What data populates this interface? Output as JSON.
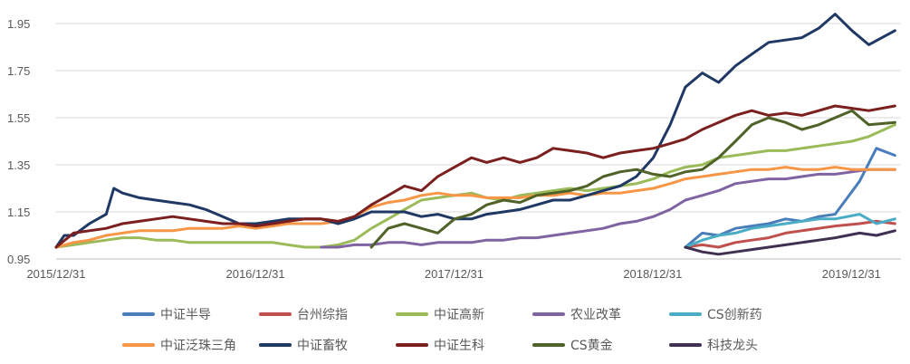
{
  "chart_data": {
    "type": "line",
    "title": "",
    "xlabel": "",
    "ylabel": "",
    "xlim": [
      "2015-12-31",
      "2020-03-31"
    ],
    "ylim": [
      0.95,
      1.95
    ],
    "yticks": [
      0.95,
      1.15,
      1.35,
      1.55,
      1.75,
      1.95
    ],
    "ytick_labels": [
      "0.95",
      "1.15",
      "1.35",
      "1.55",
      "1.75",
      "1.95"
    ],
    "xticks": [
      "2015-12-31",
      "2016-12-31",
      "2017-12-31",
      "2018-12-31",
      "2019-12-31"
    ],
    "xtick_labels": [
      "2015/12/31",
      "2016/12/31",
      "2017/12/31",
      "2018/12/31",
      "2019/12/31"
    ],
    "grid": "horizontal",
    "legend_position": "bottom",
    "series": [
      {
        "name": "中证半导",
        "color": "#4A7EBB",
        "x": [
          "2019-03-01",
          "2019-04-01",
          "2019-05-01",
          "2019-06-01",
          "2019-07-01",
          "2019-08-01",
          "2019-09-01",
          "2019-10-01",
          "2019-11-01",
          "2019-12-01",
          "2020-01-15",
          "2020-02-15",
          "2020-03-20"
        ],
        "y": [
          1.0,
          1.06,
          1.05,
          1.08,
          1.09,
          1.1,
          1.12,
          1.11,
          1.13,
          1.14,
          1.28,
          1.42,
          1.39
        ]
      },
      {
        "name": "台州综指",
        "color": "#C0504D",
        "x": [
          "2019-03-01",
          "2019-04-01",
          "2019-05-01",
          "2019-06-01",
          "2019-07-01",
          "2019-08-01",
          "2019-09-01",
          "2019-10-01",
          "2019-11-01",
          "2019-12-01",
          "2020-01-15",
          "2020-02-15",
          "2020-03-20"
        ],
        "y": [
          1.0,
          1.01,
          1.0,
          1.02,
          1.03,
          1.04,
          1.06,
          1.07,
          1.08,
          1.09,
          1.1,
          1.11,
          1.1
        ]
      },
      {
        "name": "中证高新",
        "color": "#9BBB59",
        "x": [
          "2015-12-31",
          "2016-02-01",
          "2016-03-01",
          "2016-04-01",
          "2016-05-01",
          "2016-06-01",
          "2016-07-01",
          "2016-08-01",
          "2016-09-01",
          "2016-10-01",
          "2016-11-01",
          "2016-12-01",
          "2017-01-01",
          "2017-02-01",
          "2017-03-01",
          "2017-04-01",
          "2017-05-01",
          "2017-06-01",
          "2017-07-01",
          "2017-08-01",
          "2017-09-01",
          "2017-10-01",
          "2017-11-01",
          "2017-12-01",
          "2018-01-01",
          "2018-02-01",
          "2018-03-01",
          "2018-04-01",
          "2018-05-01",
          "2018-06-01",
          "2018-07-01",
          "2018-08-01",
          "2018-09-01",
          "2018-10-01",
          "2018-11-01",
          "2018-12-01",
          "2019-01-01",
          "2019-02-01",
          "2019-03-01",
          "2019-04-01",
          "2019-05-01",
          "2019-06-01",
          "2019-07-01",
          "2019-08-01",
          "2019-09-01",
          "2019-10-01",
          "2019-11-01",
          "2019-12-01",
          "2020-01-01",
          "2020-02-01",
          "2020-03-20"
        ],
        "y": [
          1.0,
          1.01,
          1.02,
          1.03,
          1.04,
          1.04,
          1.03,
          1.03,
          1.02,
          1.02,
          1.02,
          1.02,
          1.02,
          1.02,
          1.01,
          1.0,
          1.0,
          1.01,
          1.03,
          1.08,
          1.12,
          1.16,
          1.2,
          1.21,
          1.22,
          1.23,
          1.21,
          1.2,
          1.22,
          1.23,
          1.24,
          1.25,
          1.24,
          1.25,
          1.26,
          1.27,
          1.29,
          1.32,
          1.34,
          1.35,
          1.38,
          1.39,
          1.4,
          1.41,
          1.41,
          1.42,
          1.43,
          1.44,
          1.45,
          1.47,
          1.52
        ]
      },
      {
        "name": "农业改革",
        "color": "#8064A2",
        "x": [
          "2017-05-01",
          "2017-06-01",
          "2017-07-01",
          "2017-08-01",
          "2017-09-01",
          "2017-10-01",
          "2017-11-01",
          "2017-12-01",
          "2018-01-01",
          "2018-02-01",
          "2018-03-01",
          "2018-04-01",
          "2018-05-01",
          "2018-06-01",
          "2018-07-01",
          "2018-08-01",
          "2018-09-01",
          "2018-10-01",
          "2018-11-01",
          "2018-12-01",
          "2019-01-01",
          "2019-02-01",
          "2019-03-01",
          "2019-04-01",
          "2019-05-01",
          "2019-06-01",
          "2019-07-01",
          "2019-08-01",
          "2019-09-01",
          "2019-10-01",
          "2019-11-01",
          "2019-12-01",
          "2020-01-01",
          "2020-02-01",
          "2020-03-20"
        ],
        "y": [
          1.0,
          1.0,
          1.01,
          1.01,
          1.02,
          1.02,
          1.01,
          1.02,
          1.02,
          1.02,
          1.03,
          1.03,
          1.04,
          1.04,
          1.05,
          1.06,
          1.07,
          1.08,
          1.1,
          1.11,
          1.13,
          1.16,
          1.2,
          1.22,
          1.24,
          1.27,
          1.28,
          1.29,
          1.29,
          1.3,
          1.31,
          1.31,
          1.32,
          1.33,
          1.33
        ]
      },
      {
        "name": "CS创新药",
        "color": "#4BACC6",
        "x": [
          "2019-03-01",
          "2019-04-01",
          "2019-05-01",
          "2019-06-01",
          "2019-07-01",
          "2019-08-01",
          "2019-09-01",
          "2019-10-01",
          "2019-11-01",
          "2019-12-01",
          "2020-01-15",
          "2020-02-15",
          "2020-03-20"
        ],
        "y": [
          1.0,
          1.03,
          1.05,
          1.06,
          1.08,
          1.09,
          1.1,
          1.11,
          1.12,
          1.12,
          1.14,
          1.1,
          1.12
        ]
      },
      {
        "name": "中证泛珠三角",
        "color": "#F79646",
        "x": [
          "2015-12-31",
          "2016-02-01",
          "2016-03-01",
          "2016-04-01",
          "2016-05-01",
          "2016-06-01",
          "2016-07-01",
          "2016-08-01",
          "2016-09-01",
          "2016-10-01",
          "2016-11-01",
          "2016-12-01",
          "2017-01-01",
          "2017-02-01",
          "2017-03-01",
          "2017-04-01",
          "2017-05-01",
          "2017-06-01",
          "2017-07-01",
          "2017-08-01",
          "2017-09-01",
          "2017-10-01",
          "2017-11-01",
          "2017-12-01",
          "2018-01-01",
          "2018-02-01",
          "2018-03-01",
          "2018-04-01",
          "2018-05-01",
          "2018-06-01",
          "2018-07-01",
          "2018-08-01",
          "2018-09-01",
          "2018-10-01",
          "2018-11-01",
          "2018-12-01",
          "2019-01-01",
          "2019-02-01",
          "2019-03-01",
          "2019-04-01",
          "2019-05-01",
          "2019-06-01",
          "2019-07-01",
          "2019-08-01",
          "2019-09-01",
          "2019-10-01",
          "2019-11-01",
          "2019-12-01",
          "2020-01-01",
          "2020-02-01",
          "2020-03-20"
        ],
        "y": [
          1.0,
          1.02,
          1.03,
          1.05,
          1.06,
          1.07,
          1.07,
          1.07,
          1.08,
          1.08,
          1.08,
          1.09,
          1.08,
          1.09,
          1.1,
          1.1,
          1.1,
          1.11,
          1.13,
          1.17,
          1.19,
          1.2,
          1.22,
          1.23,
          1.22,
          1.22,
          1.21,
          1.21,
          1.21,
          1.22,
          1.22,
          1.23,
          1.22,
          1.23,
          1.23,
          1.24,
          1.25,
          1.27,
          1.29,
          1.3,
          1.31,
          1.32,
          1.33,
          1.33,
          1.34,
          1.33,
          1.33,
          1.34,
          1.33,
          1.33,
          1.33
        ]
      },
      {
        "name": "中证畜牧",
        "color": "#1F3864",
        "x": [
          "2015-12-31",
          "2016-01-15",
          "2016-02-01",
          "2016-03-01",
          "2016-04-01",
          "2016-04-15",
          "2016-05-01",
          "2016-06-01",
          "2016-07-01",
          "2016-08-01",
          "2016-09-01",
          "2016-10-01",
          "2016-11-01",
          "2016-12-01",
          "2017-01-01",
          "2017-02-01",
          "2017-03-01",
          "2017-04-01",
          "2017-05-01",
          "2017-06-01",
          "2017-07-01",
          "2017-08-01",
          "2017-09-01",
          "2017-10-01",
          "2017-11-01",
          "2017-12-01",
          "2018-01-01",
          "2018-02-01",
          "2018-03-01",
          "2018-04-01",
          "2018-05-01",
          "2018-06-01",
          "2018-07-01",
          "2018-08-01",
          "2018-09-01",
          "2018-10-01",
          "2018-11-01",
          "2018-12-01",
          "2019-01-01",
          "2019-02-01",
          "2019-03-01",
          "2019-04-01",
          "2019-05-01",
          "2019-06-01",
          "2019-07-01",
          "2019-08-01",
          "2019-09-01",
          "2019-10-01",
          "2019-11-01",
          "2019-12-01",
          "2020-01-01",
          "2020-02-01",
          "2020-03-20"
        ],
        "y": [
          1.0,
          1.05,
          1.05,
          1.1,
          1.14,
          1.25,
          1.23,
          1.21,
          1.2,
          1.19,
          1.18,
          1.16,
          1.13,
          1.1,
          1.1,
          1.11,
          1.12,
          1.12,
          1.12,
          1.1,
          1.12,
          1.15,
          1.15,
          1.15,
          1.13,
          1.14,
          1.12,
          1.12,
          1.14,
          1.15,
          1.16,
          1.18,
          1.2,
          1.2,
          1.22,
          1.24,
          1.26,
          1.3,
          1.38,
          1.52,
          1.68,
          1.74,
          1.7,
          1.77,
          1.82,
          1.87,
          1.88,
          1.89,
          1.93,
          1.99,
          1.92,
          1.86,
          1.92
        ]
      },
      {
        "name": "中证生科",
        "color": "#7B1F1F",
        "x": [
          "2015-12-31",
          "2016-02-01",
          "2016-03-01",
          "2016-04-01",
          "2016-05-01",
          "2016-06-01",
          "2016-07-01",
          "2016-08-01",
          "2016-09-01",
          "2016-10-01",
          "2016-11-01",
          "2016-12-01",
          "2017-01-01",
          "2017-02-01",
          "2017-03-01",
          "2017-04-01",
          "2017-05-01",
          "2017-06-01",
          "2017-07-01",
          "2017-08-01",
          "2017-09-01",
          "2017-10-01",
          "2017-11-01",
          "2017-12-01",
          "2018-01-01",
          "2018-02-01",
          "2018-03-01",
          "2018-04-01",
          "2018-05-01",
          "2018-06-01",
          "2018-07-01",
          "2018-08-01",
          "2018-09-01",
          "2018-10-01",
          "2018-11-01",
          "2018-12-01",
          "2019-01-01",
          "2019-02-01",
          "2019-03-01",
          "2019-04-01",
          "2019-05-01",
          "2019-06-01",
          "2019-07-01",
          "2019-08-01",
          "2019-09-01",
          "2019-10-01",
          "2019-11-01",
          "2019-12-01",
          "2020-01-01",
          "2020-02-01",
          "2020-03-20"
        ],
        "y": [
          1.0,
          1.06,
          1.07,
          1.08,
          1.1,
          1.11,
          1.12,
          1.13,
          1.12,
          1.11,
          1.1,
          1.1,
          1.09,
          1.1,
          1.11,
          1.12,
          1.12,
          1.11,
          1.13,
          1.18,
          1.22,
          1.26,
          1.24,
          1.3,
          1.34,
          1.38,
          1.36,
          1.38,
          1.36,
          1.38,
          1.42,
          1.41,
          1.4,
          1.38,
          1.4,
          1.41,
          1.42,
          1.44,
          1.46,
          1.5,
          1.53,
          1.56,
          1.58,
          1.56,
          1.57,
          1.56,
          1.58,
          1.6,
          1.59,
          1.58,
          1.6
        ]
      },
      {
        "name": "CS黄金",
        "color": "#4F6228",
        "x": [
          "2017-08-01",
          "2017-09-01",
          "2017-10-01",
          "2017-11-01",
          "2017-12-01",
          "2018-01-01",
          "2018-02-01",
          "2018-03-01",
          "2018-04-01",
          "2018-05-01",
          "2018-06-01",
          "2018-07-01",
          "2018-08-01",
          "2018-09-01",
          "2018-10-01",
          "2018-11-01",
          "2018-12-01",
          "2019-01-01",
          "2019-02-01",
          "2019-03-01",
          "2019-04-01",
          "2019-05-01",
          "2019-06-01",
          "2019-07-01",
          "2019-08-01",
          "2019-09-01",
          "2019-10-01",
          "2019-11-01",
          "2019-12-01",
          "2020-01-01",
          "2020-02-01",
          "2020-03-20"
        ],
        "y": [
          1.0,
          1.08,
          1.1,
          1.08,
          1.06,
          1.12,
          1.14,
          1.18,
          1.2,
          1.19,
          1.22,
          1.23,
          1.24,
          1.26,
          1.3,
          1.32,
          1.33,
          1.31,
          1.3,
          1.32,
          1.33,
          1.38,
          1.45,
          1.52,
          1.55,
          1.53,
          1.5,
          1.52,
          1.55,
          1.58,
          1.52,
          1.53
        ]
      },
      {
        "name": "科技龙头",
        "color": "#403152",
        "x": [
          "2019-03-01",
          "2019-04-01",
          "2019-05-01",
          "2019-06-01",
          "2019-07-01",
          "2019-08-01",
          "2019-09-01",
          "2019-10-01",
          "2019-11-01",
          "2019-12-01",
          "2020-01-15",
          "2020-02-15",
          "2020-03-20"
        ],
        "y": [
          1.0,
          0.98,
          0.97,
          0.98,
          0.99,
          1.0,
          1.01,
          1.02,
          1.03,
          1.04,
          1.06,
          1.05,
          1.07
        ]
      }
    ]
  }
}
